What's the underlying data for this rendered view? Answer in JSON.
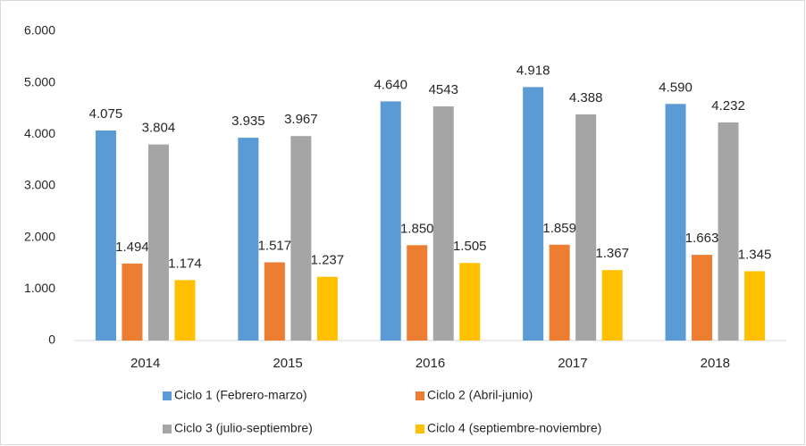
{
  "chart_data": {
    "type": "bar",
    "categories": [
      "2014",
      "2015",
      "2016",
      "2017",
      "2018"
    ],
    "series": [
      {
        "name": "Ciclo 1 (Febrero-marzo)",
        "color": "#5b9bd5",
        "values": [
          4075,
          3935,
          4640,
          4918,
          4590
        ],
        "value_labels": [
          "4.075",
          "3.935",
          "4.640",
          "4.918",
          "4.590"
        ]
      },
      {
        "name": "Ciclo 2 (Abril-junio)",
        "color": "#ed7d31",
        "values": [
          1494,
          1517,
          1850,
          1859,
          1663
        ],
        "value_labels": [
          "1.494",
          "1.517",
          "1.850",
          "1.859",
          "1.663"
        ]
      },
      {
        "name": "Ciclo 3 (julio-septiembre)",
        "color": "#a5a5a5",
        "values": [
          3804,
          3967,
          4543,
          4388,
          4232
        ],
        "value_labels": [
          "3.804",
          "3.967",
          "4543",
          "4.388",
          "4.232"
        ]
      },
      {
        "name": "Ciclo 4 (septiembre-noviembre)",
        "color": "#ffc000",
        "values": [
          1174,
          1237,
          1505,
          1367,
          1345
        ],
        "value_labels": [
          "1.174",
          "1.237",
          "1.505",
          "1.367",
          "1.345"
        ]
      }
    ],
    "ylim": [
      0,
      6000
    ],
    "yticks": [
      0,
      {
        "value": 1000,
        "label": "1.000"
      },
      {
        "value": 2000,
        "label": "2.000"
      },
      {
        "value": 3000,
        "label": "3.000"
      },
      {
        "value": 4000,
        "label": "4.000"
      },
      {
        "value": 5000,
        "label": "5.000"
      },
      {
        "value": 6000,
        "label": "6.000"
      }
    ],
    "grid": false,
    "legend": "bottom"
  }
}
